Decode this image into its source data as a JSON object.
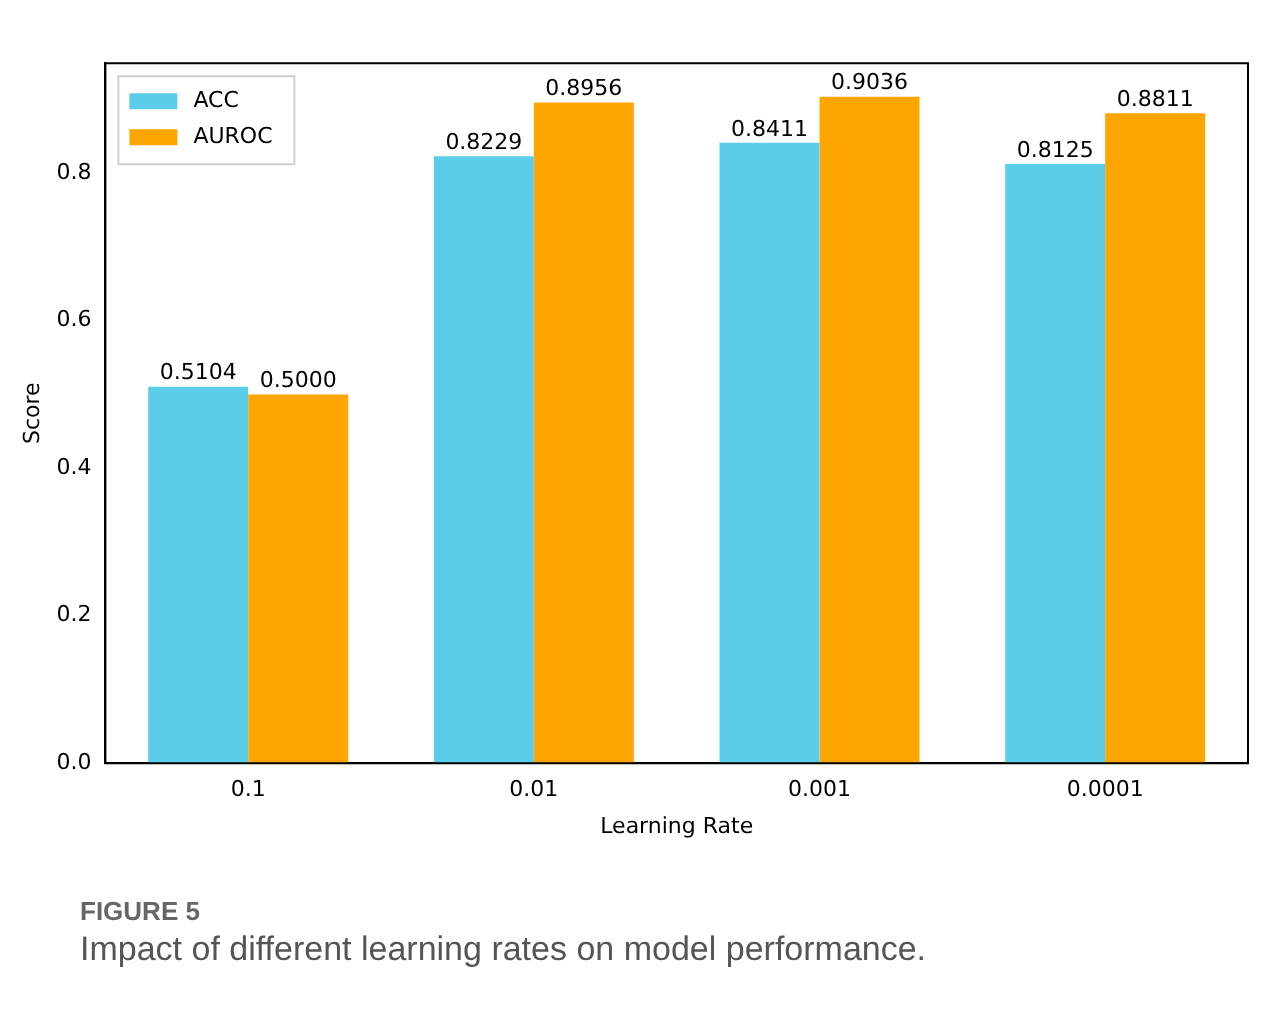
{
  "chart_data": {
    "type": "bar",
    "xlabel": "Learning Rate",
    "ylabel": "Score",
    "categories": [
      "0.1",
      "0.01",
      "0.001",
      "0.0001"
    ],
    "series": [
      {
        "name": "ACC",
        "color": "#5bcde8",
        "values": [
          0.5104,
          0.8229,
          0.8411,
          0.8125
        ],
        "value_labels": [
          "0.5104",
          "0.8229",
          "0.8411",
          "0.8125"
        ]
      },
      {
        "name": "AUROC",
        "color": "#ffa500",
        "values": [
          0.5,
          0.8956,
          0.9036,
          0.8811
        ],
        "value_labels": [
          "0.5000",
          "0.8956",
          "0.9036",
          "0.8811"
        ]
      }
    ],
    "ylim": [
      0,
      0.949
    ],
    "yticks": [
      {
        "value": 0,
        "label": "0.0"
      },
      0.2,
      0.4,
      0.6,
      0.8
    ],
    "grid": false,
    "legend": "top left",
    "annotations": [
      "FIGURE 5",
      "Impact of different learning rates on model performance."
    ]
  }
}
